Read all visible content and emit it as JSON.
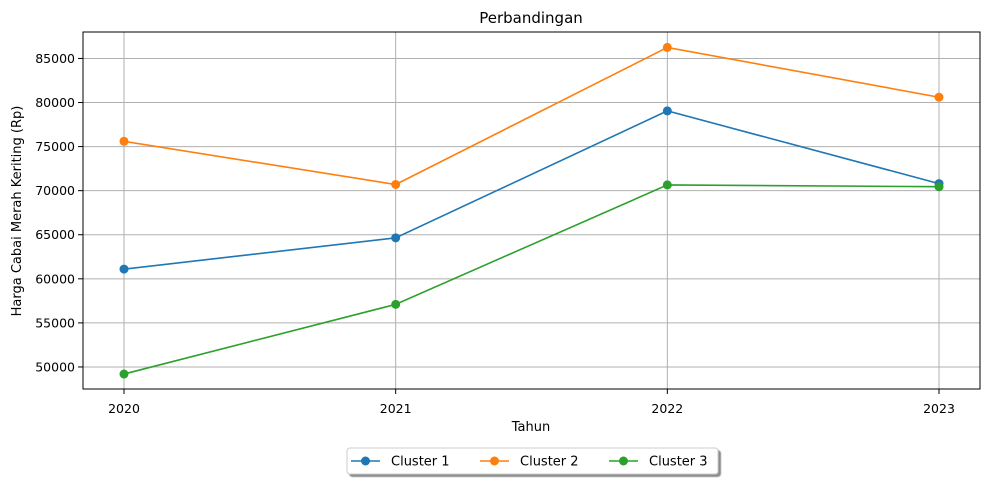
{
  "chart_data": {
    "type": "line",
    "title": "Perbandingan",
    "xlabel": "Tahun",
    "ylabel": "Harga Cabai Merah Keriting (Rp)",
    "categories": [
      "2020",
      "2021",
      "2022",
      "2023"
    ],
    "y_ticks": [
      "50000",
      "55000",
      "60000",
      "65000",
      "70000",
      "75000",
      "80000",
      "85000"
    ],
    "ylim": [
      47500,
      88000
    ],
    "grid": true,
    "legend_position": "bottom-center",
    "series": [
      {
        "name": "Cluster 1",
        "color": "#1f77b4",
        "values": [
          61100,
          64650,
          79050,
          70800
        ]
      },
      {
        "name": "Cluster 2",
        "color": "#ff7f0e",
        "values": [
          75600,
          70700,
          86250,
          80600
        ]
      },
      {
        "name": "Cluster 3",
        "color": "#2ca02c",
        "values": [
          49200,
          57100,
          70650,
          70450
        ]
      }
    ]
  }
}
